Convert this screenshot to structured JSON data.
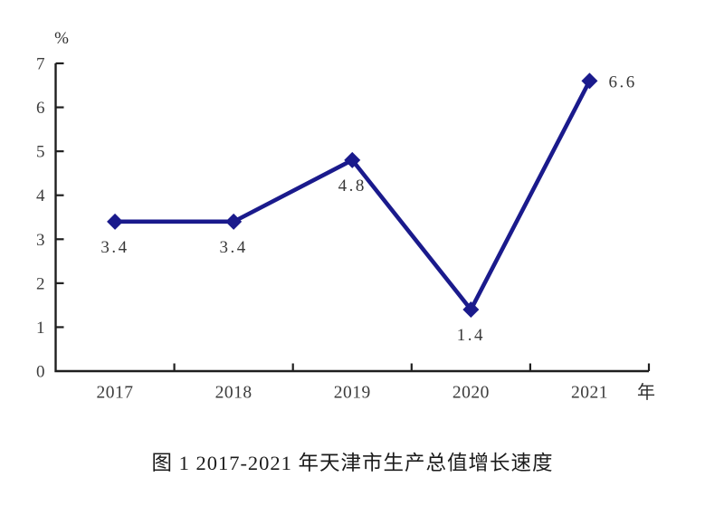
{
  "chart_data": {
    "type": "line",
    "title": "图 1 2017-2021 年天津市生产总值增长速度",
    "ylabel": "%",
    "xlabel": "年",
    "categories": [
      "2017",
      "2018",
      "2019",
      "2020",
      "2021"
    ],
    "values": [
      3.4,
      3.4,
      4.8,
      1.4,
      6.6
    ],
    "data_labels": [
      "3.4",
      "3.4",
      "4.8",
      "1.4",
      "6.6"
    ],
    "ylim": [
      0,
      7
    ],
    "yticks": [
      0,
      1,
      2,
      3,
      4,
      5,
      6,
      7
    ],
    "grid": false,
    "legend": "none",
    "line_color": "#1a1a8c",
    "marker": "diamond",
    "axis_color": "#1f1f1f",
    "tick_label_color": "#3d3d3d"
  }
}
